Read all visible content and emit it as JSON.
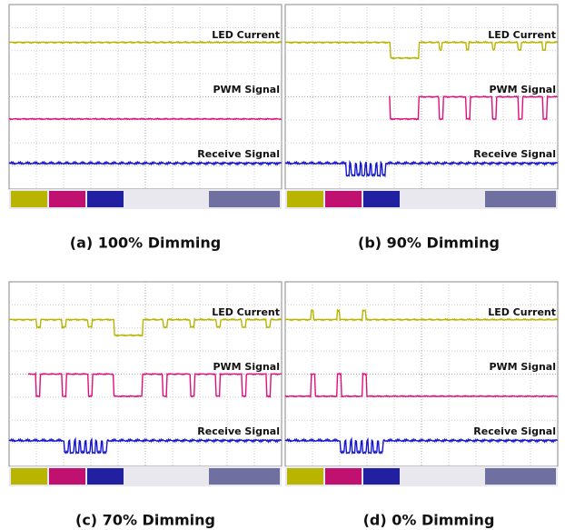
{
  "panels": [
    {
      "traces": [
        "LED Current",
        "PWM Signal",
        "Receive Signal"
      ],
      "caption": "(a) 100% Dimming"
    },
    {
      "traces": [
        "LED Current",
        "PWM Signal",
        "Receive Signal"
      ],
      "caption": "(b) 90% Dimming"
    },
    {
      "traces": [
        "LED Current",
        "PWM Signal",
        "Receive Signal"
      ],
      "caption": "(c) 70% Dimming"
    },
    {
      "traces": [
        "LED Current",
        "PWM Signal",
        "Receive Signal"
      ],
      "caption": "(d) 0% Dimming"
    }
  ]
}
